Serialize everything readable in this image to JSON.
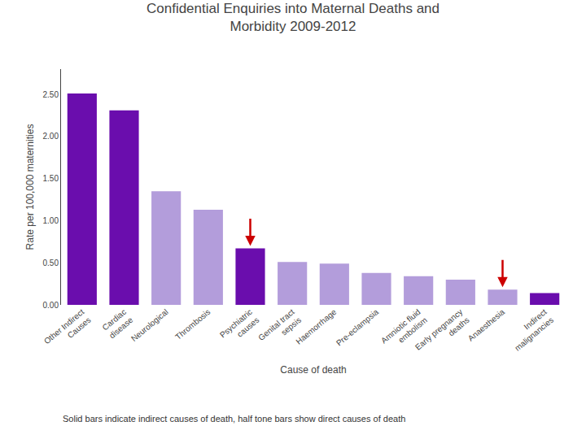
{
  "chart_data": {
    "type": "bar",
    "title": "Confidential Enquiries into Maternal Deaths and\nMorbidity 2009-2012",
    "xlabel": "Cause of death",
    "ylabel": "Rate per 100,000 maternities",
    "categories": [
      "Other Indirect\nCauses",
      "Cardiac\ndisease",
      "Neurological",
      "Thrombosis",
      "Psychiatric\ncauses",
      "Genital tract\nsepsis",
      "Haemorrhage",
      "Pre-eclampsia",
      "Amniotic fluid\nembolism",
      "Early pregnancy\ndeaths",
      "Anaesthesia",
      "Indirect\nmalignancies"
    ],
    "values": [
      2.51,
      2.31,
      1.35,
      1.13,
      0.67,
      0.51,
      0.49,
      0.38,
      0.34,
      0.3,
      0.18,
      0.14
    ],
    "colors": [
      "#6A0DAD",
      "#6A0DAD",
      "#B39DDB",
      "#B39DDB",
      "#6A0DAD",
      "#B39DDB",
      "#B39DDB",
      "#B39DDB",
      "#B39DDB",
      "#B39DDB",
      "#B39DDB",
      "#6A0DAD"
    ],
    "ylim": [
      0,
      2.8
    ],
    "yticks": [
      {
        "value": 0,
        "label": "0.00"
      },
      {
        "value": 0.5,
        "label": "0.50"
      },
      {
        "value": 1,
        "label": "1.00"
      },
      {
        "value": 1.5,
        "label": "1.50"
      },
      {
        "value": 2,
        "label": "2.00"
      },
      {
        "value": 2.5,
        "label": "2.50"
      }
    ],
    "grid": false,
    "annotations": [
      "Solid bars indicate indirect causes of death, half tone bars show direct causes of death"
    ],
    "arrows": {
      "categories": [
        "Psychiatric\ncauses",
        "Anaesthesia"
      ],
      "color": "#CC0000"
    }
  }
}
